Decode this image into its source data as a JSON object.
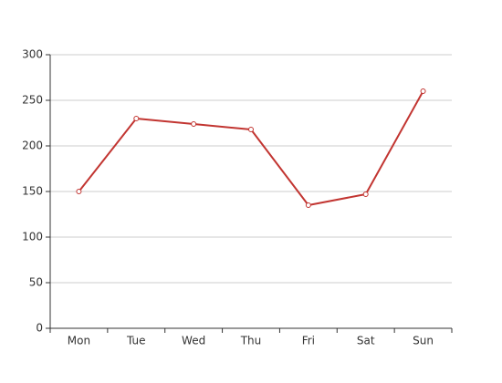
{
  "chart_data": {
    "type": "line",
    "categories": [
      "Mon",
      "Tue",
      "Wed",
      "Thu",
      "Fri",
      "Sat",
      "Sun"
    ],
    "values": [
      150,
      230,
      224,
      218,
      135,
      147,
      260
    ],
    "color": "#c23531",
    "ylim": [
      0,
      300
    ],
    "yticks": [
      0,
      50,
      100,
      150,
      200,
      250,
      300
    ],
    "grid": true
  }
}
